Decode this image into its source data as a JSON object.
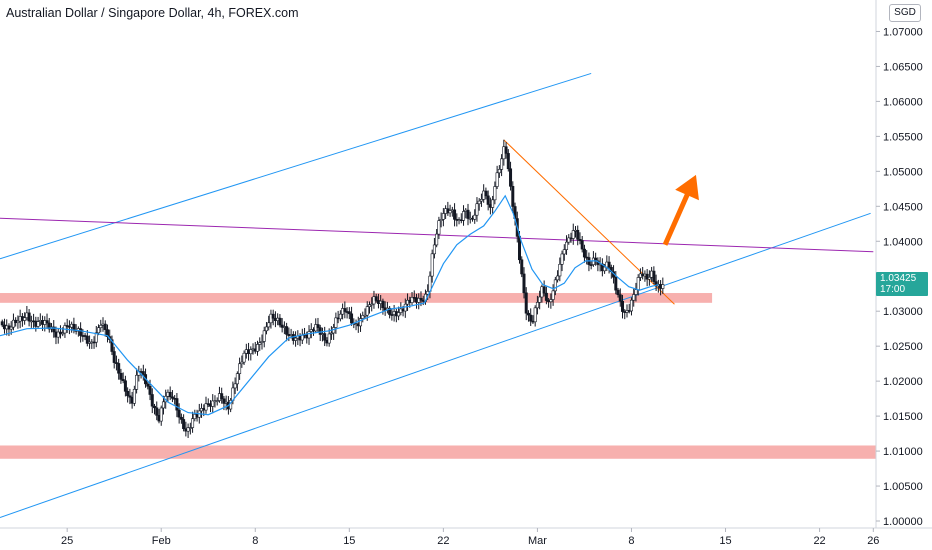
{
  "header": {
    "title": "Australian Dollar / Singapore Dollar, 4h, FOREX.com",
    "currency": "SGD"
  },
  "last_price": {
    "price": "1.03425",
    "countdown": "17:00"
  },
  "colors": {
    "bull": "#26a69a",
    "bear": "#ef5350",
    "candle": "#131722",
    "ma": "#2196f3",
    "channel": "#2196f3",
    "resistance": "#9c27b0",
    "downtrend": "#ff6d00",
    "zone": "#f7b0ae",
    "arrow": "#ff6d00"
  },
  "chart_data": {
    "type": "candlestick",
    "title": "Australian Dollar / Singapore Dollar, 4h, FOREX.com",
    "ylim": [
      0.999,
      1.0745
    ],
    "y_ticks": [
      "1.00000",
      "1.00500",
      "1.01000",
      "1.01500",
      "1.02000",
      "1.02500",
      "1.03000",
      "1.03500",
      "1.04000",
      "1.04500",
      "1.05000",
      "1.05500",
      "1.06000",
      "1.06500",
      "1.07000"
    ],
    "x_ticks": [
      {
        "label": "25",
        "day": 25
      },
      {
        "label": "Feb",
        "day": 32
      },
      {
        "label": "8",
        "day": 39
      },
      {
        "label": "15",
        "day": 46
      },
      {
        "label": "22",
        "day": 53
      },
      {
        "label": "Mar",
        "day": 60
      },
      {
        "label": "8",
        "day": 67
      },
      {
        "label": "15",
        "day": 74
      },
      {
        "label": "22",
        "day": 81
      },
      {
        "label": "26",
        "day": 85
      }
    ],
    "xlim_day": [
      20,
      85.2
    ],
    "close_path": [
      [
        20.0,
        1.0285
      ],
      [
        20.6,
        1.0268
      ],
      [
        21.4,
        1.0288
      ],
      [
        22.0,
        1.03
      ],
      [
        22.6,
        1.0282
      ],
      [
        23.4,
        1.0278
      ],
      [
        24.2,
        1.027
      ],
      [
        25.0,
        1.0282
      ],
      [
        25.6,
        1.0268
      ],
      [
        26.2,
        1.0262
      ],
      [
        26.8,
        1.0258
      ],
      [
        27.5,
        1.0285
      ],
      [
        28.0,
        1.0262
      ],
      [
        28.5,
        1.0225
      ],
      [
        29.2,
        1.02
      ],
      [
        29.8,
        1.0172
      ],
      [
        30.3,
        1.0215
      ],
      [
        30.9,
        1.0192
      ],
      [
        31.3,
        1.017
      ],
      [
        31.8,
        1.015
      ],
      [
        32.3,
        1.0185
      ],
      [
        32.9,
        1.0172
      ],
      [
        33.4,
        1.014
      ],
      [
        33.9,
        1.0128
      ],
      [
        34.4,
        1.0155
      ],
      [
        35.1,
        1.016
      ],
      [
        35.8,
        1.0162
      ],
      [
        36.4,
        1.0182
      ],
      [
        37.0,
        1.0168
      ],
      [
        37.6,
        1.0205
      ],
      [
        38.2,
        1.0235
      ],
      [
        38.8,
        1.0245
      ],
      [
        39.4,
        1.0262
      ],
      [
        40.1,
        1.029
      ],
      [
        40.8,
        1.0278
      ],
      [
        41.5,
        1.027
      ],
      [
        42.2,
        1.0265
      ],
      [
        42.9,
        1.026
      ],
      [
        43.6,
        1.0278
      ],
      [
        44.3,
        1.0262
      ],
      [
        45.0,
        1.0285
      ],
      [
        45.7,
        1.0298
      ],
      [
        46.4,
        1.0282
      ],
      [
        47.1,
        1.03
      ],
      [
        47.8,
        1.0312
      ],
      [
        48.5,
        1.0305
      ],
      [
        49.2,
        1.0302
      ],
      [
        49.9,
        1.03
      ],
      [
        50.6,
        1.0312
      ],
      [
        51.3,
        1.0318
      ],
      [
        51.8,
        1.033
      ],
      [
        52.2,
        1.0385
      ],
      [
        52.6,
        1.0418
      ],
      [
        53.0,
        1.0435
      ],
      [
        53.6,
        1.0445
      ],
      [
        54.1,
        1.0432
      ],
      [
        54.6,
        1.0448
      ],
      [
        55.1,
        1.0422
      ],
      [
        55.6,
        1.045
      ],
      [
        56.1,
        1.0472
      ],
      [
        56.5,
        1.045
      ],
      [
        56.9,
        1.0492
      ],
      [
        57.3,
        1.0515
      ],
      [
        57.6,
        1.0535
      ],
      [
        58.0,
        1.047
      ],
      [
        58.4,
        1.042
      ],
      [
        58.8,
        1.036
      ],
      [
        59.2,
        1.0302
      ],
      [
        59.6,
        1.0285
      ],
      [
        60.0,
        1.031
      ],
      [
        60.4,
        1.0328
      ],
      [
        60.8,
        1.0305
      ],
      [
        61.2,
        1.0335
      ],
      [
        61.6,
        1.0368
      ],
      [
        62.0,
        1.0395
      ],
      [
        62.4,
        1.0402
      ],
      [
        62.8,
        1.041
      ],
      [
        63.3,
        1.0388
      ],
      [
        63.8,
        1.0372
      ],
      [
        64.3,
        1.038
      ],
      [
        64.8,
        1.0358
      ],
      [
        65.3,
        1.0362
      ],
      [
        65.7,
        1.034
      ],
      [
        66.1,
        1.0318
      ],
      [
        66.5,
        1.0302
      ],
      [
        66.9,
        1.031
      ],
      [
        67.3,
        1.033
      ],
      [
        67.7,
        1.035
      ],
      [
        68.1,
        1.0342
      ],
      [
        68.5,
        1.0355
      ],
      [
        68.9,
        1.034
      ],
      [
        69.4,
        1.03425
      ]
    ],
    "series": [
      {
        "name": "",
        "type": "moving-average",
        "points": [
          [
            20.0,
            1.0265
          ],
          [
            22.0,
            1.0275
          ],
          [
            24.0,
            1.0276
          ],
          [
            26.0,
            1.0272
          ],
          [
            28.0,
            1.0265
          ],
          [
            29.5,
            1.023
          ],
          [
            31.0,
            1.02
          ],
          [
            32.5,
            1.017
          ],
          [
            34.0,
            1.0155
          ],
          [
            35.5,
            1.0152
          ],
          [
            37.0,
            1.0165
          ],
          [
            38.5,
            1.02
          ],
          [
            40.0,
            1.0235
          ],
          [
            41.5,
            1.0262
          ],
          [
            43.0,
            1.0268
          ],
          [
            44.5,
            1.0272
          ],
          [
            46.0,
            1.028
          ],
          [
            47.5,
            1.0292
          ],
          [
            49.0,
            1.0303
          ],
          [
            50.5,
            1.0307
          ],
          [
            51.6,
            1.0312
          ],
          [
            52.3,
            1.034
          ],
          [
            53.0,
            1.0368
          ],
          [
            54.0,
            1.0395
          ],
          [
            55.0,
            1.041
          ],
          [
            56.0,
            1.0422
          ],
          [
            56.8,
            1.0442
          ],
          [
            57.6,
            1.0465
          ],
          [
            58.2,
            1.044
          ],
          [
            58.8,
            1.04
          ],
          [
            59.6,
            1.036
          ],
          [
            60.4,
            1.0338
          ],
          [
            61.2,
            1.0332
          ],
          [
            62.0,
            1.034
          ],
          [
            62.8,
            1.0362
          ],
          [
            63.6,
            1.0372
          ],
          [
            64.4,
            1.0372
          ],
          [
            65.2,
            1.0362
          ],
          [
            66.0,
            1.0348
          ],
          [
            66.8,
            1.0335
          ],
          [
            67.6,
            1.033
          ],
          [
            68.4,
            1.0335
          ],
          [
            69.0,
            1.0338
          ]
        ]
      }
    ],
    "drawings": [
      {
        "name": "",
        "type": "trendline",
        "style": "channel",
        "from": [
          20.0,
          1.0375
        ],
        "to": [
          64.0,
          1.064
        ]
      },
      {
        "name": "",
        "type": "trendline",
        "style": "channel",
        "from": [
          20.0,
          1.0005
        ],
        "to": [
          84.8,
          1.044
        ]
      },
      {
        "name": "",
        "type": "trendline",
        "style": "resistance",
        "from": [
          20.0,
          1.0433
        ],
        "to": [
          85.0,
          1.0385
        ]
      },
      {
        "name": "",
        "type": "trendline",
        "style": "downtrend",
        "from": [
          57.5,
          1.0545
        ],
        "to": [
          70.2,
          1.031
        ]
      },
      {
        "name": "",
        "type": "zone",
        "day_range": [
          20.0,
          73.0
        ],
        "y_range": [
          1.0312,
          1.0326
        ]
      },
      {
        "name": "",
        "type": "zone",
        "day_range": [
          20.0,
          85.2
        ],
        "y_range": [
          1.0089,
          1.0108
        ]
      },
      {
        "name": "",
        "type": "arrow",
        "from": [
          69.5,
          1.0395
        ],
        "to": [
          71.8,
          1.0495
        ]
      }
    ],
    "grid": false,
    "legend": "none"
  }
}
